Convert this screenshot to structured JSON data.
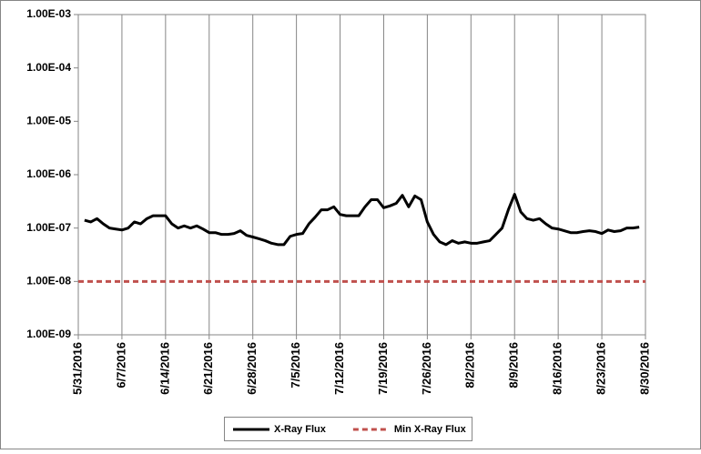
{
  "chart_data": {
    "type": "line",
    "log_y": true,
    "grid": "x",
    "legend": "bottom",
    "xlim": [
      "5/31/2016",
      "8/30/2016"
    ],
    "xticks": [
      "5/31/2016",
      "6/7/2016",
      "6/14/2016",
      "6/21/2016",
      "6/28/2016",
      "7/5/2016",
      "7/12/2016",
      "7/19/2016",
      "7/26/2016",
      "8/2/2016",
      "8/9/2016",
      "8/16/2016",
      "8/23/2016",
      "8/30/2016"
    ],
    "ylim": [
      1e-09,
      0.001
    ],
    "yticks": [
      {
        "value": 1e-09,
        "label": "1.00E-09"
      },
      {
        "value": 1e-08,
        "label": "1.00E-08"
      },
      {
        "value": 1e-07,
        "label": "1.00E-07"
      },
      {
        "value": 1e-06,
        "label": "1.00E-06"
      },
      {
        "value": 1e-05,
        "label": "1.00E-05"
      },
      {
        "value": 0.0001,
        "label": "1.00E-04"
      },
      {
        "value": 0.001,
        "label": "1.00E-03"
      }
    ],
    "series": [
      {
        "name": "X-Ray Flux",
        "color": "#000000",
        "style": "solid",
        "x": [
          "6/1/2016",
          "6/2/2016",
          "6/3/2016",
          "6/4/2016",
          "6/5/2016",
          "6/6/2016",
          "6/7/2016",
          "6/8/2016",
          "6/9/2016",
          "6/10/2016",
          "6/11/2016",
          "6/12/2016",
          "6/13/2016",
          "6/14/2016",
          "6/15/2016",
          "6/16/2016",
          "6/17/2016",
          "6/18/2016",
          "6/19/2016",
          "6/20/2016",
          "6/21/2016",
          "6/22/2016",
          "6/23/2016",
          "6/24/2016",
          "6/25/2016",
          "6/26/2016",
          "6/27/2016",
          "6/28/2016",
          "6/29/2016",
          "6/30/2016",
          "7/1/2016",
          "7/2/2016",
          "7/3/2016",
          "7/4/2016",
          "7/5/2016",
          "7/6/2016",
          "7/7/2016",
          "7/8/2016",
          "7/9/2016",
          "7/10/2016",
          "7/11/2016",
          "7/12/2016",
          "7/13/2016",
          "7/14/2016",
          "7/15/2016",
          "7/16/2016",
          "7/17/2016",
          "7/18/2016",
          "7/19/2016",
          "7/20/2016",
          "7/21/2016",
          "7/22/2016",
          "7/23/2016",
          "7/24/2016",
          "7/25/2016",
          "7/26/2016",
          "7/27/2016",
          "7/28/2016",
          "7/29/2016",
          "7/30/2016",
          "7/31/2016",
          "8/1/2016",
          "8/2/2016",
          "8/3/2016",
          "8/4/2016",
          "8/5/2016",
          "8/6/2016",
          "8/7/2016",
          "8/8/2016",
          "8/9/2016",
          "8/10/2016",
          "8/11/2016",
          "8/12/2016",
          "8/13/2016",
          "8/14/2016",
          "8/15/2016",
          "8/16/2016",
          "8/17/2016",
          "8/18/2016",
          "8/19/2016",
          "8/20/2016",
          "8/21/2016",
          "8/22/2016",
          "8/23/2016",
          "8/24/2016",
          "8/25/2016",
          "8/26/2016",
          "8/27/2016",
          "8/28/2016",
          "8/29/2016"
        ],
        "values": [
          1.4e-07,
          1.3e-07,
          1.5e-07,
          1.2e-07,
          1e-07,
          9.6e-08,
          9.2e-08,
          1e-07,
          1.3e-07,
          1.2e-07,
          1.5e-07,
          1.7e-07,
          1.7e-07,
          1.7e-07,
          1.2e-07,
          1e-07,
          1.1e-07,
          1e-07,
          1.1e-07,
          9.6e-08,
          8.2e-08,
          8.2e-08,
          7.6e-08,
          7.6e-08,
          7.9e-08,
          8.9e-08,
          7.3e-08,
          6.8e-08,
          6.3e-08,
          5.8e-08,
          5.2e-08,
          4.9e-08,
          4.9e-08,
          7e-08,
          7.6e-08,
          7.9e-08,
          1.2e-07,
          1.6e-07,
          2.2e-07,
          2.2e-07,
          2.5e-07,
          1.8e-07,
          1.7e-07,
          1.7e-07,
          1.7e-07,
          2.5e-07,
          3.4e-07,
          3.4e-07,
          2.4e-07,
          2.6e-07,
          2.9e-07,
          4.1e-07,
          2.5e-07,
          4e-07,
          3.4e-07,
          1.3e-07,
          7.6e-08,
          5.5e-08,
          4.9e-08,
          5.8e-08,
          5.2e-08,
          5.5e-08,
          5.2e-08,
          5.2e-08,
          5.5e-08,
          5.8e-08,
          7.6e-08,
          1e-07,
          2.2e-07,
          4.3e-07,
          2e-07,
          1.5e-07,
          1.4e-07,
          1.5e-07,
          1.2e-07,
          1e-07,
          9.6e-08,
          8.9e-08,
          8.2e-08,
          8.2e-08,
          8.6e-08,
          8.9e-08,
          8.6e-08,
          7.9e-08,
          9.2e-08,
          8.6e-08,
          8.9e-08,
          1e-07,
          1e-07,
          1.04e-07
        ]
      },
      {
        "name": "Min X-Ray Flux",
        "color": "#c0504d",
        "style": "dashed",
        "x": [
          "5/31/2016",
          "8/30/2016"
        ],
        "values": [
          1e-08,
          1e-08
        ]
      }
    ]
  }
}
